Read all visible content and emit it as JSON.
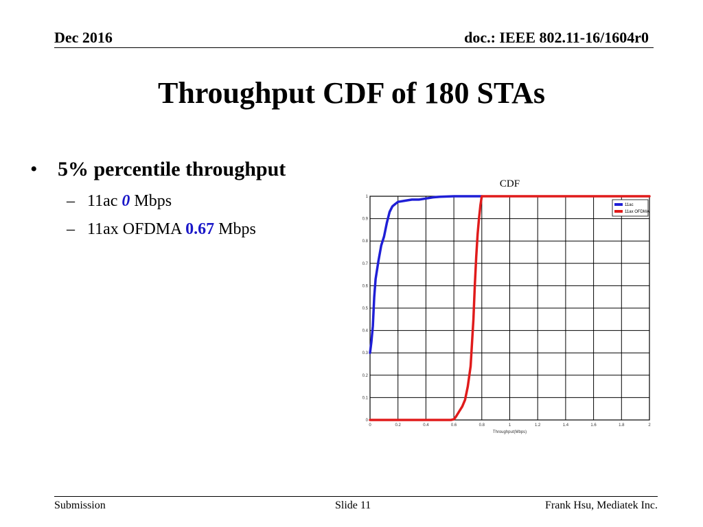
{
  "header": {
    "date": "Dec 2016",
    "doc": "doc.: IEEE 802.11-16/1604r0"
  },
  "title": "Throughput CDF of 180 STAs",
  "bullet": {
    "marker": "•",
    "text": "5% percentile throughput",
    "subs": [
      {
        "dash": "–",
        "prefix": "11ac ",
        "value": "0",
        "suffix": " Mbps"
      },
      {
        "dash": "–",
        "prefix": "11ax OFDMA ",
        "value": "0.67",
        "suffix": " Mbps"
      }
    ]
  },
  "chart_data": {
    "type": "line",
    "title": "CDF",
    "xlabel": "Throughput(Mbps)",
    "ylabel": "",
    "xlim": [
      0,
      2
    ],
    "ylim": [
      0,
      1
    ],
    "xticks": [
      0,
      0.2,
      0.4,
      0.6,
      0.8,
      1,
      1.2,
      1.4,
      1.6,
      1.8,
      2
    ],
    "xtick_labels": [
      "0",
      "0.2",
      "0.4",
      "0.6",
      "0.8",
      "1",
      "1.2",
      "1.4",
      "1.6",
      "1.8",
      "2"
    ],
    "yticks": [
      0,
      0.1,
      0.2,
      0.3,
      0.4,
      0.5,
      0.6,
      0.7,
      0.8,
      0.9,
      1
    ],
    "ytick_labels": [
      "0",
      "0.1",
      "0.2",
      "0.3",
      "0.4",
      "0.5",
      "0.6",
      "0.7",
      "0.8",
      "0.9",
      "1"
    ],
    "grid": true,
    "legend_position": "top-right",
    "series": [
      {
        "name": "11ac",
        "color": "#1f1fd6",
        "x": [
          0,
          0.01,
          0.02,
          0.03,
          0.04,
          0.06,
          0.08,
          0.1,
          0.12,
          0.14,
          0.16,
          0.18,
          0.2,
          0.25,
          0.3,
          0.35,
          0.4,
          0.45,
          0.5,
          0.6,
          0.8
        ],
        "y": [
          0.3,
          0.35,
          0.42,
          0.55,
          0.63,
          0.71,
          0.78,
          0.82,
          0.88,
          0.93,
          0.955,
          0.965,
          0.975,
          0.98,
          0.985,
          0.985,
          0.99,
          0.995,
          0.998,
          1,
          1
        ]
      },
      {
        "name": "11ax OFDMA",
        "color": "#e01b1b",
        "x": [
          0,
          0.5,
          0.58,
          0.6,
          0.61,
          0.62,
          0.64,
          0.66,
          0.68,
          0.7,
          0.72,
          0.74,
          0.75,
          0.76,
          0.77,
          0.78,
          0.79,
          0.8,
          0.85,
          1.0,
          1.5,
          2.0
        ],
        "y": [
          0,
          0,
          0,
          0.003,
          0.01,
          0.02,
          0.04,
          0.06,
          0.09,
          0.15,
          0.24,
          0.45,
          0.6,
          0.73,
          0.83,
          0.9,
          0.96,
          1,
          1,
          1,
          1,
          1
        ]
      }
    ]
  },
  "footer": {
    "left": "Submission",
    "center": "Slide 11",
    "right": "Frank Hsu, Mediatek Inc."
  }
}
